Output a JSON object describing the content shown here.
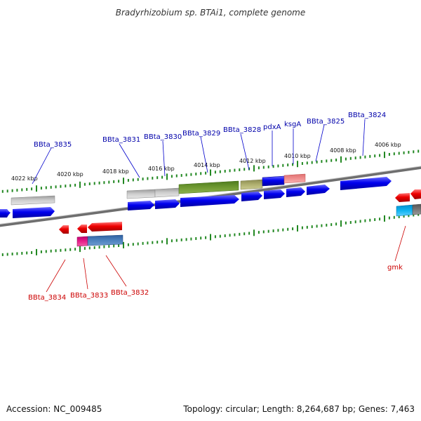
{
  "title": "Bradyrhizobium sp. BTAi1, complete genome",
  "footer": {
    "accession": "Accession: NC_009485",
    "topology": "Topology: circular; Length: 8,264,687 bp; Genes: 7,463"
  },
  "kbp_labels": [
    "4022 kbp",
    "4020 kbp",
    "4018 kbp",
    "4016 kbp",
    "4014 kbp",
    "4012 kbp",
    "4010 kbp",
    "4008 kbp",
    "4006 kbp"
  ],
  "forward_gene_labels": [
    "BBta_3835",
    "BBta_3831",
    "BBta_3830",
    "BBta_3829",
    "BBta_3828",
    "pdxA",
    "ksgA",
    "BBta_3825",
    "BBta_3824"
  ],
  "reverse_gene_labels": [
    "BBta_3834",
    "BBta_3833",
    "BBta_3832",
    "gmk"
  ],
  "colors": {
    "forward_gene": "#0000ee",
    "reverse_gene": "#ee0000",
    "forward_label": "#0000aa",
    "reverse_label": "#cc0000",
    "tick": "#228822",
    "backbone": "#777777"
  }
}
